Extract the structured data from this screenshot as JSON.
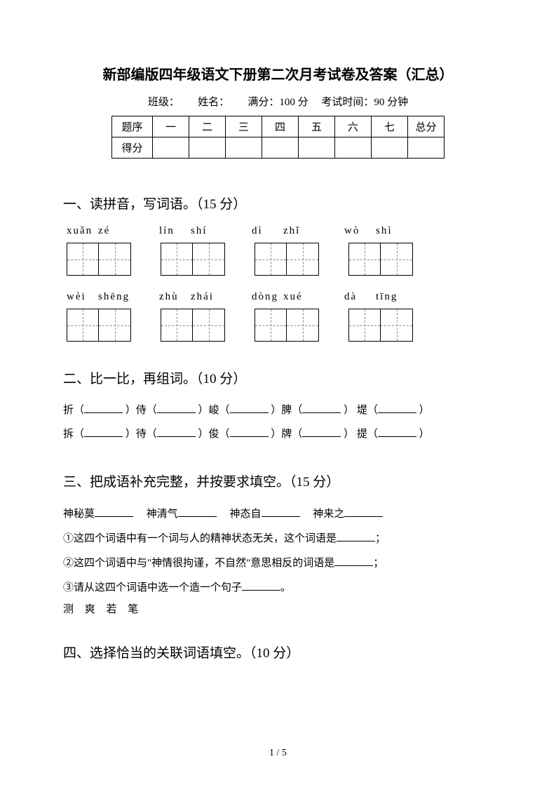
{
  "title": "新部编版四年级语文下册第二次月考试卷及答案（汇总）",
  "info": {
    "class_label": "班级：",
    "name_label": "姓名：",
    "full_score_label": "满分：",
    "full_score_value": "100 分",
    "time_label": "考试时间：",
    "time_value": "90 分钟"
  },
  "score_table": {
    "row1": [
      "题序",
      "一",
      "二",
      "三",
      "四",
      "五",
      "六",
      "七",
      "总分"
    ],
    "row2": [
      "得分",
      "",
      "",
      "",
      "",
      "",
      "",
      "",
      ""
    ]
  },
  "section1": {
    "heading": "一、读拼音，写词语。（15 分）",
    "pinyin_rows": [
      [
        [
          "xuǎn",
          "zé"
        ],
        [
          "lín",
          "shí"
        ],
        [
          "dì",
          "zhǐ"
        ],
        [
          "wò",
          "shì"
        ]
      ],
      [
        [
          "wèi",
          "shēng"
        ],
        [
          "zhù",
          "zhái"
        ],
        [
          "dòng",
          "xué"
        ],
        [
          "dà",
          "tīng"
        ]
      ]
    ]
  },
  "section2": {
    "heading": "二、比一比，再组词。（10 分）",
    "line1": {
      "c1": "折（",
      "c2": "）侍（",
      "c3": "）峻（",
      "c4": "）脾（",
      "c5": "） 堤（",
      "c6": "）"
    },
    "line2": {
      "c1": "拆（",
      "c2": "）待（",
      "c3": "）俊（",
      "c4": "）牌（",
      "c5": "） 提（",
      "c6": "）"
    }
  },
  "section3": {
    "heading": "三、把成语补充完整，并按要求填空。（15 分）",
    "idiom1": "神秘莫",
    "idiom2": "神清气",
    "idiom3": "神态自",
    "idiom4": "神来之",
    "q1": "①这四个词语中有一个词与人的精神状态无关，这个词语是",
    "q1_end": "；",
    "q2": "②这四个词语中与\"神情很拘谨，不自然\"意思相反的词语是",
    "q2_end": "；",
    "q3": "③请从这四个词语中选一个造一个句子",
    "q3_end": "。",
    "chars": "测 爽 若 笔"
  },
  "section4": {
    "heading": "四、选择恰当的关联词语填空。（10 分）"
  },
  "footer": "1 / 5",
  "colors": {
    "text": "#000000",
    "background": "#ffffff",
    "dash": "#888888"
  }
}
